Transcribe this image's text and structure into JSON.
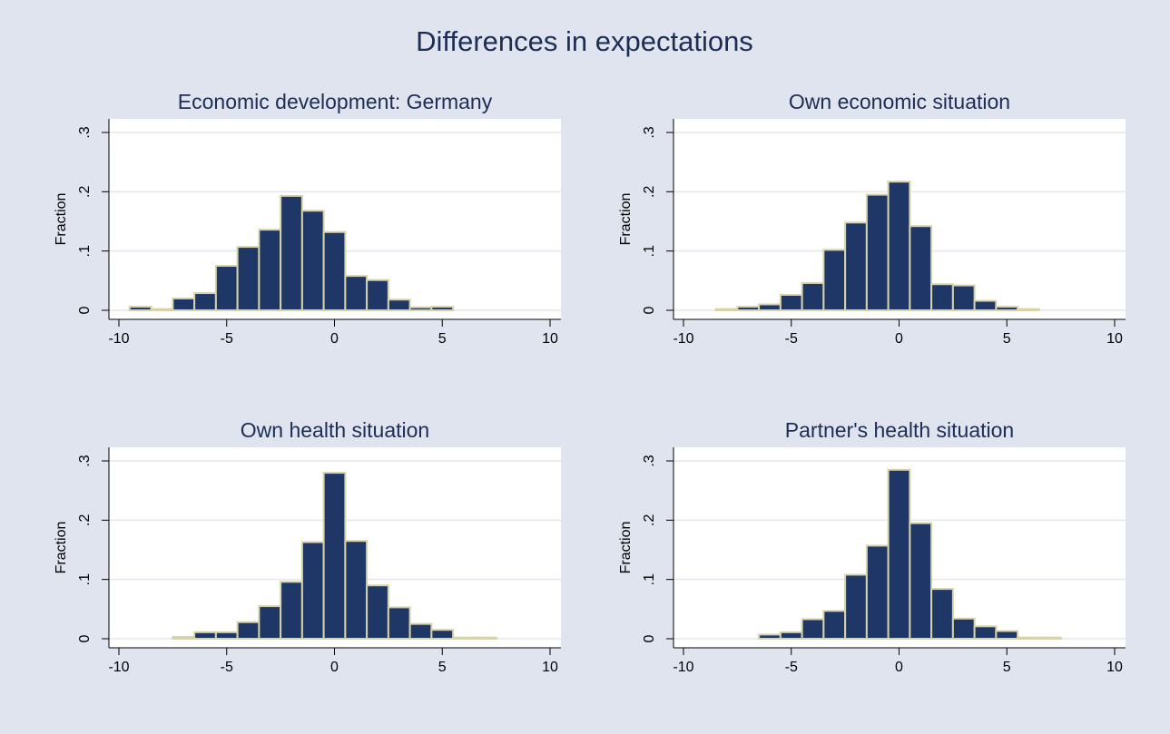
{
  "title": "Differences in expectations",
  "chart_data": [
    {
      "type": "histogram",
      "title": "Economic development: Germany",
      "y_label": "Fraction",
      "bins": [
        -9.5,
        -8.5,
        -7.5,
        -6.5,
        -5.5,
        -4.5,
        -3.5,
        -2.5,
        -1.5,
        -0.5,
        0.5,
        1.5,
        2.5,
        3.5,
        4.5,
        5.5
      ],
      "values": [
        0.006,
        0.002,
        0.02,
        0.029,
        0.075,
        0.107,
        0.136,
        0.193,
        0.168,
        0.132,
        0.058,
        0.051,
        0.018,
        0.005,
        0.006
      ],
      "color": "#1f3766",
      "edge_color": "#d8d2a8",
      "xlim": [
        -10,
        10
      ],
      "xticks": [
        -10,
        -5,
        0,
        5,
        10
      ],
      "ylim": [
        0,
        0.3
      ],
      "yticks": [
        0,
        {
          "value": 0.1,
          "label": ".1"
        },
        {
          "value": 0.2,
          "label": ".2"
        },
        {
          "value": 0.3,
          "label": ".3"
        }
      ],
      "grid": true
    },
    {
      "type": "histogram",
      "title": "Own economic situation",
      "y_label": "Fraction",
      "bins": [
        -8.5,
        -7.5,
        -6.5,
        -5.5,
        -4.5,
        -3.5,
        -2.5,
        -1.5,
        -0.5,
        0.5,
        1.5,
        2.5,
        3.5,
        4.5,
        5.5,
        6.5
      ],
      "values": [
        0.002,
        0.006,
        0.01,
        0.026,
        0.046,
        0.102,
        0.148,
        0.195,
        0.217,
        0.142,
        0.044,
        0.042,
        0.016,
        0.006,
        0.002
      ],
      "color": "#1f3766",
      "edge_color": "#d8d2a8",
      "xlim": [
        -10,
        10
      ],
      "xticks": [
        -10,
        -5,
        0,
        5,
        10
      ],
      "ylim": [
        0,
        0.3
      ],
      "yticks": [
        0,
        {
          "value": 0.1,
          "label": ".1"
        },
        {
          "value": 0.2,
          "label": ".2"
        },
        {
          "value": 0.3,
          "label": ".3"
        }
      ],
      "grid": true
    },
    {
      "type": "histogram",
      "title": "Own health situation",
      "y_label": "Fraction",
      "bins": [
        -7.5,
        -6.5,
        -5.5,
        -4.5,
        -3.5,
        -2.5,
        -1.5,
        -0.5,
        0.5,
        1.5,
        2.5,
        3.5,
        4.5,
        5.5,
        6.5,
        7.5
      ],
      "values": [
        0.003,
        0.011,
        0.011,
        0.028,
        0.055,
        0.096,
        0.163,
        0.28,
        0.165,
        0.09,
        0.053,
        0.025,
        0.015,
        0.002,
        0.002
      ],
      "color": "#1f3766",
      "edge_color": "#d8d2a8",
      "xlim": [
        -10,
        10
      ],
      "xticks": [
        -10,
        -5,
        0,
        5,
        10
      ],
      "ylim": [
        0,
        0.3
      ],
      "yticks": [
        0,
        {
          "value": 0.1,
          "label": ".1"
        },
        {
          "value": 0.2,
          "label": ".2"
        },
        {
          "value": 0.3,
          "label": ".3"
        }
      ],
      "grid": true
    },
    {
      "type": "histogram",
      "title": "Partner's health situation",
      "y_label": "Fraction",
      "bins": [
        -6.5,
        -5.5,
        -4.5,
        -3.5,
        -2.5,
        -1.5,
        -0.5,
        0.5,
        1.5,
        2.5,
        3.5,
        4.5,
        5.5,
        6.5,
        7.5
      ],
      "values": [
        0.007,
        0.011,
        0.033,
        0.047,
        0.108,
        0.157,
        0.285,
        0.195,
        0.084,
        0.034,
        0.021,
        0.013,
        0.002,
        0.002
      ],
      "color": "#1f3766",
      "edge_color": "#d8d2a8",
      "xlim": [
        -10,
        10
      ],
      "xticks": [
        -10,
        -5,
        0,
        5,
        10
      ],
      "ylim": [
        0,
        0.3
      ],
      "yticks": [
        0,
        {
          "value": 0.1,
          "label": ".1"
        },
        {
          "value": 0.2,
          "label": ".2"
        },
        {
          "value": 0.3,
          "label": ".3"
        }
      ],
      "grid": true
    }
  ]
}
